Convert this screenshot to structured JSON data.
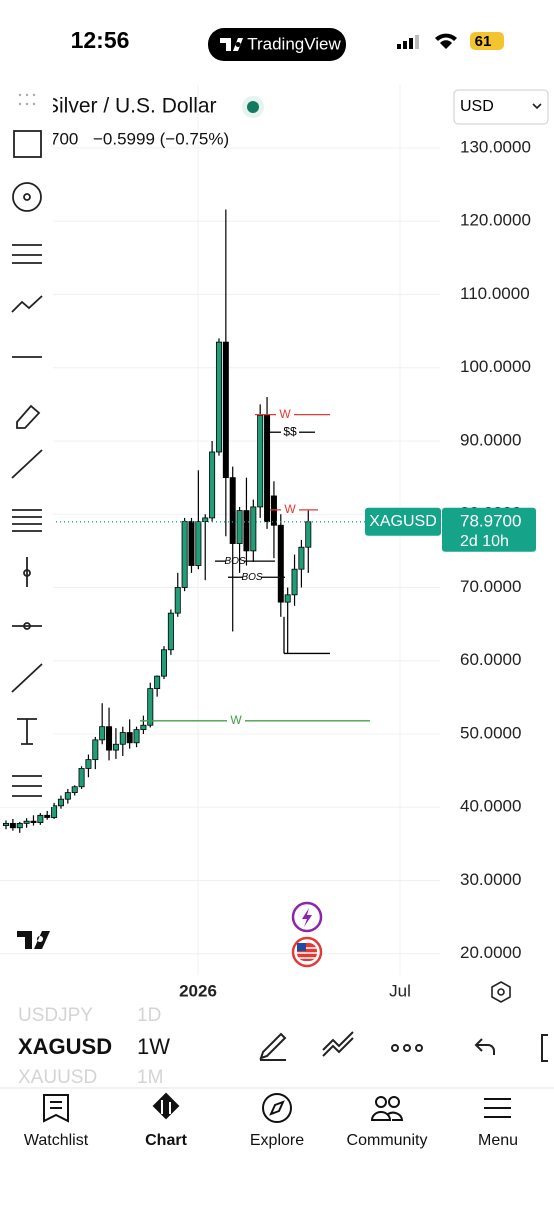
{
  "status_bar": {
    "time": "12:56",
    "app_name": "TradingView",
    "battery": "61"
  },
  "header": {
    "symbol_name": "Silver / U.S. Dollar",
    "last_fragment": "700",
    "change": "−0.5999 (−0.75%)",
    "currency": "USD"
  },
  "chart_data": {
    "type": "candlestick",
    "open": [
      37.5,
      37.8,
      37.2,
      37.8,
      38.1,
      37.9,
      38.9,
      38.6,
      40.2,
      41.1,
      42.0,
      42.8,
      45.3,
      46.5,
      49.2,
      51.0,
      47.8,
      48.6,
      50.2,
      48.8,
      50.6,
      51.2,
      56.2,
      57.9,
      61.5,
      66.5,
      70.0,
      79.0,
      73.0,
      79.0,
      79.5,
      88.5,
      103.5,
      85.0,
      76.0,
      80.5,
      75.0,
      81.0,
      93.5,
      82.5,
      78.5,
      68.0,
      69.0,
      72.5,
      75.5
    ],
    "high": [
      38.2,
      38.4,
      38.0,
      38.5,
      38.9,
      39.2,
      39.5,
      40.6,
      41.6,
      42.5,
      43.0,
      45.6,
      47.2,
      49.6,
      54.2,
      53.6,
      50.8,
      51.0,
      52.0,
      51.0,
      52.5,
      57.0,
      58.0,
      62.0,
      67.0,
      72.0,
      79.5,
      79.5,
      86.0,
      80.0,
      90.0,
      104.0,
      121.6,
      86.5,
      81.0,
      85.0,
      82.0,
      95.0,
      96.0,
      84.5,
      80.0,
      70.0,
      74.5,
      76.5,
      80.5
    ],
    "low": [
      37.0,
      36.8,
      36.5,
      37.2,
      37.5,
      37.6,
      38.3,
      38.4,
      39.8,
      40.5,
      41.6,
      42.5,
      44.1,
      45.2,
      48.6,
      46.4,
      46.6,
      47.0,
      48.0,
      48.2,
      50.0,
      50.9,
      55.1,
      57.5,
      60.8,
      66.0,
      69.5,
      72.0,
      72.5,
      71.0,
      79.0,
      88.0,
      77.0,
      64.0,
      72.0,
      73.0,
      73.5,
      79.5,
      78.0,
      74.0,
      66.0,
      61.0,
      67.5,
      70.0,
      72.0
    ],
    "close": [
      37.8,
      37.2,
      37.8,
      38.1,
      37.9,
      38.9,
      38.6,
      40.2,
      41.1,
      42.0,
      42.8,
      45.3,
      46.5,
      49.2,
      51.0,
      47.8,
      48.6,
      50.2,
      48.8,
      50.6,
      51.2,
      56.2,
      57.9,
      61.5,
      66.5,
      70.0,
      79.0,
      73.0,
      79.0,
      79.5,
      88.5,
      103.5,
      85.0,
      76.0,
      80.5,
      75.0,
      81.0,
      93.5,
      79.0,
      78.5,
      68.0,
      69.0,
      72.5,
      75.5,
      78.97
    ],
    "up_color": "#1f9e78",
    "down_color": "#000000",
    "ylim": [
      17.1,
      138.6
    ],
    "yticks": [
      {
        "value": 20,
        "label": "20.0000"
      },
      {
        "value": 30,
        "label": "30.0000"
      },
      {
        "value": 40,
        "label": "40.0000"
      },
      {
        "value": 50,
        "label": "50.0000"
      },
      {
        "value": 60,
        "label": "60.0000"
      },
      {
        "value": 70,
        "label": "70.0000"
      },
      {
        "value": 80,
        "label": "80.0000"
      },
      {
        "value": 90,
        "label": "90.0000"
      },
      {
        "value": 100,
        "label": "100.0000"
      },
      {
        "value": 110,
        "label": "110.0000"
      },
      {
        "value": 120,
        "label": "120.0000"
      },
      {
        "value": 130,
        "label": "130.0000"
      }
    ],
    "x_labels": [
      "2026",
      "Jul"
    ],
    "last_price": {
      "symbol": "XAGUSD",
      "value": 78.97,
      "label": "78.9700",
      "countdown": "2d 10h",
      "color": "#15a38a"
    },
    "annotations": [
      {
        "label": "W",
        "value": 93.6,
        "color": "#e53935"
      },
      {
        "label": "$$",
        "value": 91.2,
        "color": "#000000"
      },
      {
        "label": "W",
        "value": 80.6,
        "color": "#e53935"
      },
      {
        "label": "BOS",
        "value": 73.6,
        "color": "#000000"
      },
      {
        "label": "BOS",
        "value": 71.4,
        "color": "#000000"
      },
      {
        "label": "W",
        "value": 51.8,
        "color": "#43a047"
      },
      {
        "label": null,
        "value": 61.0,
        "color": "#000000"
      }
    ]
  },
  "symbol_strip": {
    "prev": {
      "symbol": "USDJPY",
      "interval": "1D"
    },
    "current": {
      "symbol": "XAGUSD",
      "interval": "1W"
    },
    "next": {
      "symbol": "XAUUSD",
      "interval": "1M"
    }
  },
  "nav": [
    "Watchlist",
    "Chart",
    "Explore",
    "Community",
    "Menu"
  ]
}
